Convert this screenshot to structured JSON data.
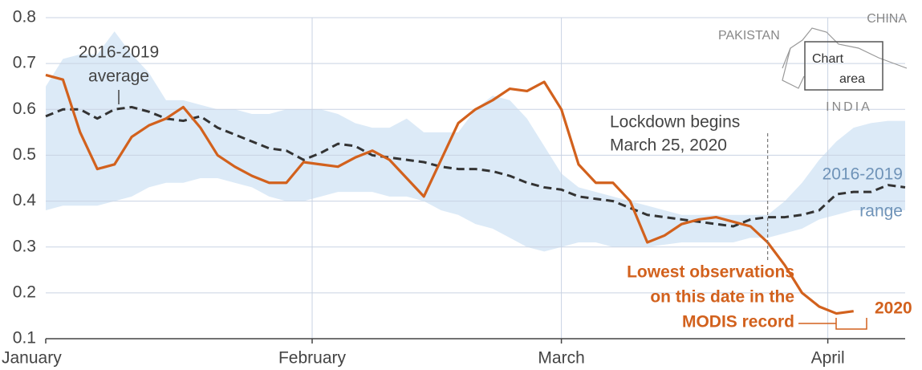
{
  "chart_data": {
    "type": "line",
    "x": [
      0,
      2,
      4,
      6,
      8,
      10,
      12,
      14,
      16,
      18,
      20,
      22,
      24,
      26,
      28,
      30,
      32,
      34,
      36,
      38,
      40,
      42,
      44,
      46,
      48,
      50,
      52,
      54,
      56,
      58,
      60,
      62,
      64,
      66,
      68,
      70,
      72,
      74,
      76,
      78,
      80,
      82,
      84,
      86,
      88,
      90,
      92,
      94,
      96,
      98,
      100
    ],
    "xlim": [
      0,
      100
    ],
    "xticks": [
      {
        "value": 0,
        "label": "January"
      },
      {
        "value": 31,
        "label": "February"
      },
      {
        "value": 60,
        "label": "March"
      },
      {
        "value": 91,
        "label": "April"
      }
    ],
    "ylim": [
      0.1,
      0.8
    ],
    "yticks": [
      0.1,
      0.2,
      0.3,
      0.4,
      0.5,
      0.6,
      0.7,
      0.8
    ],
    "grid": true,
    "band": {
      "color": "#dceaf7",
      "upper": [
        0.65,
        0.71,
        0.72,
        0.72,
        0.77,
        0.72,
        0.68,
        0.62,
        0.62,
        0.61,
        0.6,
        0.6,
        0.59,
        0.59,
        0.6,
        0.6,
        0.6,
        0.59,
        0.57,
        0.56,
        0.56,
        0.58,
        0.55,
        0.55,
        0.55,
        0.6,
        0.63,
        0.62,
        0.58,
        0.52,
        0.46,
        0.43,
        0.42,
        0.41,
        0.4,
        0.39,
        0.38,
        0.37,
        0.37,
        0.37,
        0.37,
        0.37,
        0.37,
        0.4,
        0.44,
        0.49,
        0.53,
        0.56,
        0.57,
        0.575,
        0.575
      ],
      "lower": [
        0.38,
        0.39,
        0.39,
        0.39,
        0.4,
        0.41,
        0.43,
        0.44,
        0.44,
        0.45,
        0.45,
        0.44,
        0.43,
        0.41,
        0.4,
        0.4,
        0.41,
        0.42,
        0.42,
        0.42,
        0.41,
        0.41,
        0.4,
        0.38,
        0.37,
        0.35,
        0.34,
        0.32,
        0.3,
        0.29,
        0.3,
        0.31,
        0.31,
        0.3,
        0.3,
        0.3,
        0.305,
        0.31,
        0.31,
        0.31,
        0.31,
        0.32,
        0.32,
        0.33,
        0.34,
        0.36,
        0.37,
        0.38,
        0.38,
        0.38,
        0.38
      ]
    },
    "series": [
      {
        "color": "#333333",
        "dashed": true,
        "values": [
          0.585,
          0.6,
          0.6,
          0.58,
          0.6,
          0.605,
          0.595,
          0.58,
          0.575,
          0.585,
          0.56,
          0.545,
          0.53,
          0.515,
          0.51,
          0.49,
          0.505,
          0.525,
          0.52,
          0.5,
          0.495,
          0.49,
          0.485,
          0.475,
          0.47,
          0.47,
          0.465,
          0.455,
          0.44,
          0.43,
          0.425,
          0.41,
          0.405,
          0.4,
          0.385,
          0.37,
          0.365,
          0.36,
          0.355,
          0.35,
          0.345,
          0.36,
          0.365,
          0.365,
          0.37,
          0.38,
          0.415,
          0.42,
          0.42,
          0.435,
          0.43
        ]
      },
      {
        "name": "2020",
        "color": "#d2611d",
        "dashed": false,
        "values": [
          0.675,
          0.665,
          0.55,
          0.47,
          0.48,
          0.54,
          0.565,
          0.58,
          0.605,
          0.56,
          0.5,
          0.475,
          0.455,
          0.44,
          0.44,
          0.485,
          0.48,
          0.475,
          0.495,
          0.51,
          0.49,
          0.45,
          0.41,
          0.49,
          0.57,
          0.6,
          0.62,
          0.645,
          0.64,
          0.66,
          0.6,
          0.48,
          0.44,
          0.44,
          0.4,
          0.31,
          0.325,
          0.35,
          0.36,
          0.365,
          0.355,
          0.345,
          0.31,
          0.26,
          0.2,
          0.17,
          0.155,
          0.16,
          null,
          null,
          null
        ]
      }
    ],
    "annotations": [
      {
        "lines": [
          "2016-2019",
          "average"
        ]
      },
      {
        "lines": [
          "Lockdown begins",
          "March 25, 2020"
        ],
        "x": 84
      },
      {
        "lines": [
          "2016-2019",
          "range"
        ]
      },
      {
        "lines": [
          "Lowest observations",
          "on this date in the",
          "MODIS record"
        ]
      }
    ],
    "inset": {
      "labels": [
        "PAKISTAN",
        "CHINA",
        "Chart",
        "area",
        "INDIA"
      ]
    }
  }
}
